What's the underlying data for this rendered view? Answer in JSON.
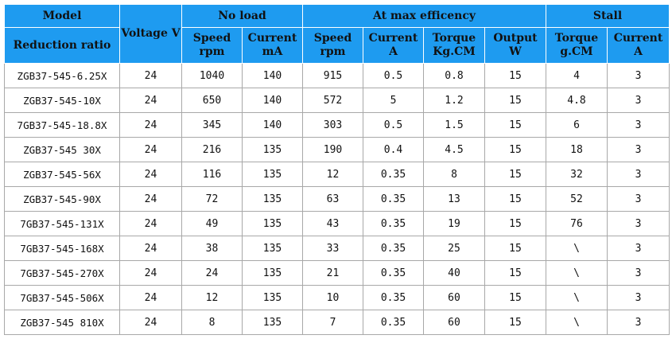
{
  "headers": {
    "model": "Model",
    "reduction_ratio": "Reduction ratio",
    "voltage": "Voltage V",
    "no_load": "No load",
    "max_eff": "At max efficency",
    "stall": "Stall",
    "speed": "Speed",
    "rpm": "rpm",
    "current": "Current",
    "ma": "mA",
    "a": "A",
    "torque": "Torque",
    "kgcm": "Kg.CM",
    "output": "Output",
    "w": "W",
    "gcm": "g.CM"
  },
  "rows": [
    [
      "ZGB37-545-6.25X",
      "24",
      "1040",
      "140",
      "915",
      "0.5",
      "0.8",
      "15",
      "4",
      "3"
    ],
    [
      "ZGB37-545-10X",
      "24",
      "650",
      "140",
      "572",
      "5",
      "1.2",
      "15",
      "4.8",
      "3"
    ],
    [
      "7GB37-545-18.8X",
      "24",
      "345",
      "140",
      "303",
      "0.5",
      "1.5",
      "15",
      "6",
      "3"
    ],
    [
      "ZGB37-545 30X",
      "24",
      "216",
      "135",
      "190",
      "0.4",
      "4.5",
      "15",
      "18",
      "3"
    ],
    [
      "ZGB37-545-56X",
      "24",
      "116",
      "135",
      "12",
      "0.35",
      "8",
      "15",
      "32",
      "3"
    ],
    [
      "ZGB37-545-90X",
      "24",
      "72",
      "135",
      "63",
      "0.35",
      "13",
      "15",
      "52",
      "3"
    ],
    [
      "7GB37-545-131X",
      "24",
      "49",
      "135",
      "43",
      "0.35",
      "19",
      "15",
      "76",
      "3"
    ],
    [
      "7GB37-545-168X",
      "24",
      "38",
      "135",
      "33",
      "0.35",
      "25",
      "15",
      "\\",
      "3"
    ],
    [
      "7GB37-545-270X",
      "24",
      "24",
      "135",
      "21",
      "0.35",
      "40",
      "15",
      "\\",
      "3"
    ],
    [
      "7GB37-545-506X",
      "24",
      "12",
      "135",
      "10",
      "0.35",
      "60",
      "15",
      "\\",
      "3"
    ],
    [
      "ZGB37-545 810X",
      "24",
      "8",
      "135",
      "7",
      "0.35",
      "60",
      "15",
      "\\",
      "3"
    ]
  ],
  "colors": {
    "header_bg": "#1e9bf0",
    "grid": "#a8a8a8"
  }
}
